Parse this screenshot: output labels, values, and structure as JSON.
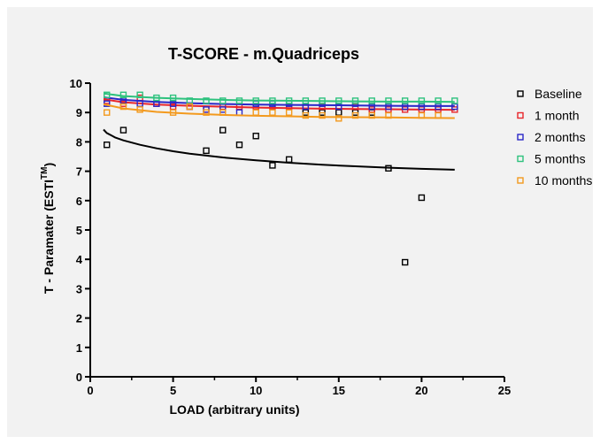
{
  "chart_data": {
    "type": "scatter",
    "title": "T-SCORE - m.Quadriceps",
    "xlabel": "LOAD (arbitrary units)",
    "ylabel_main": "T - Paramater (ESTI",
    "ylabel_sup": "TM",
    "ylabel_end": ")",
    "xlim": [
      0,
      25
    ],
    "ylim": [
      0,
      10
    ],
    "x_ticks": [
      0,
      5,
      10,
      15,
      20,
      25
    ],
    "y_ticks": [
      0,
      1,
      2,
      3,
      4,
      5,
      6,
      7,
      8,
      9,
      10
    ],
    "grid": false,
    "legend_position": "right",
    "marker": "open-square",
    "series": [
      {
        "name": "Baseline",
        "color": "#000000",
        "points": [
          [
            1,
            7.9
          ],
          [
            2,
            8.4
          ],
          [
            7,
            7.7
          ],
          [
            8,
            8.4
          ],
          [
            9,
            7.9
          ],
          [
            10,
            8.2
          ],
          [
            11,
            7.2
          ],
          [
            12,
            7.4
          ],
          [
            13,
            9.0
          ],
          [
            14,
            9.0
          ],
          [
            15,
            9.0
          ],
          [
            16,
            9.0
          ],
          [
            17,
            9.0
          ],
          [
            18,
            7.1
          ],
          [
            19,
            3.9
          ],
          [
            20,
            6.1
          ]
        ],
        "fit": [
          [
            0.8,
            8.42
          ],
          [
            1,
            8.3
          ],
          [
            1.5,
            8.15
          ],
          [
            2,
            8.05
          ],
          [
            3,
            7.9
          ],
          [
            4,
            7.78
          ],
          [
            5,
            7.68
          ],
          [
            6,
            7.6
          ],
          [
            8,
            7.47
          ],
          [
            10,
            7.37
          ],
          [
            12,
            7.29
          ],
          [
            14,
            7.22
          ],
          [
            16,
            7.17
          ],
          [
            18,
            7.12
          ],
          [
            20,
            7.08
          ],
          [
            22,
            7.05
          ]
        ]
      },
      {
        "name": "1 month",
        "color": "#e8262b",
        "points": [
          [
            1,
            9.4
          ],
          [
            2,
            9.3
          ],
          [
            3,
            9.5
          ],
          [
            4,
            9.3
          ],
          [
            5,
            9.2
          ],
          [
            6,
            9.2
          ],
          [
            7,
            9.1
          ],
          [
            8,
            9.2
          ],
          [
            9,
            9.2
          ],
          [
            10,
            9.2
          ],
          [
            11,
            9.2
          ],
          [
            12,
            9.2
          ],
          [
            13,
            9.2
          ],
          [
            14,
            9.2
          ],
          [
            15,
            9.2
          ],
          [
            16,
            9.2
          ],
          [
            17,
            9.1
          ],
          [
            18,
            9.1
          ],
          [
            19,
            9.1
          ],
          [
            20,
            9.1
          ],
          [
            21,
            9.1
          ],
          [
            22,
            9.1
          ]
        ],
        "fit": [
          [
            0.8,
            9.45
          ],
          [
            2,
            9.35
          ],
          [
            4,
            9.27
          ],
          [
            6,
            9.23
          ],
          [
            8,
            9.2
          ],
          [
            10,
            9.17
          ],
          [
            12,
            9.15
          ],
          [
            14,
            9.13
          ],
          [
            16,
            9.12
          ],
          [
            18,
            9.11
          ],
          [
            20,
            9.1
          ],
          [
            22,
            9.09
          ]
        ]
      },
      {
        "name": "2 months",
        "color": "#2a27c8",
        "points": [
          [
            1,
            9.3
          ],
          [
            2,
            9.4
          ],
          [
            3,
            9.3
          ],
          [
            4,
            9.3
          ],
          [
            5,
            9.3
          ],
          [
            6,
            9.2
          ],
          [
            7,
            9.1
          ],
          [
            8,
            9.1
          ],
          [
            9,
            9.0
          ],
          [
            10,
            9.3
          ],
          [
            11,
            9.3
          ],
          [
            12,
            9.3
          ],
          [
            13,
            9.2
          ],
          [
            14,
            9.3
          ],
          [
            15,
            9.2
          ],
          [
            16,
            9.3
          ],
          [
            17,
            9.2
          ],
          [
            18,
            9.2
          ],
          [
            19,
            9.2
          ],
          [
            20,
            9.2
          ],
          [
            21,
            9.2
          ],
          [
            22,
            9.2
          ]
        ],
        "fit": [
          [
            0.8,
            9.52
          ],
          [
            2,
            9.43
          ],
          [
            4,
            9.36
          ],
          [
            6,
            9.32
          ],
          [
            8,
            9.29
          ],
          [
            10,
            9.27
          ],
          [
            12,
            9.26
          ],
          [
            14,
            9.25
          ],
          [
            16,
            9.24
          ],
          [
            18,
            9.23
          ],
          [
            20,
            9.22
          ],
          [
            22,
            9.22
          ]
        ]
      },
      {
        "name": "5 months",
        "color": "#2ec27e",
        "points": [
          [
            1,
            9.6
          ],
          [
            2,
            9.6
          ],
          [
            3,
            9.6
          ],
          [
            4,
            9.5
          ],
          [
            5,
            9.5
          ],
          [
            6,
            9.4
          ],
          [
            7,
            9.4
          ],
          [
            8,
            9.4
          ],
          [
            9,
            9.4
          ],
          [
            10,
            9.4
          ],
          [
            11,
            9.4
          ],
          [
            12,
            9.4
          ],
          [
            13,
            9.4
          ],
          [
            14,
            9.4
          ],
          [
            15,
            9.4
          ],
          [
            16,
            9.4
          ],
          [
            17,
            9.4
          ],
          [
            18,
            9.4
          ],
          [
            19,
            9.4
          ],
          [
            20,
            9.4
          ],
          [
            21,
            9.4
          ],
          [
            22,
            9.4
          ]
        ],
        "fit": [
          [
            0.8,
            9.65
          ],
          [
            2,
            9.56
          ],
          [
            4,
            9.5
          ],
          [
            6,
            9.46
          ],
          [
            8,
            9.43
          ],
          [
            10,
            9.41
          ],
          [
            12,
            9.4
          ],
          [
            14,
            9.39
          ],
          [
            16,
            9.38
          ],
          [
            18,
            9.37
          ],
          [
            20,
            9.37
          ],
          [
            22,
            9.36
          ]
        ]
      },
      {
        "name": "10 months",
        "color": "#f39a1e",
        "points": [
          [
            1,
            9.0
          ],
          [
            2,
            9.2
          ],
          [
            3,
            9.1
          ],
          [
            5,
            9.0
          ],
          [
            6,
            9.2
          ],
          [
            7,
            9.0
          ],
          [
            8,
            9.0
          ],
          [
            10,
            9.0
          ],
          [
            11,
            9.0
          ],
          [
            12,
            9.0
          ],
          [
            13,
            8.9
          ],
          [
            14,
            8.9
          ],
          [
            15,
            8.8
          ],
          [
            16,
            8.9
          ],
          [
            17,
            8.9
          ],
          [
            18,
            8.9
          ],
          [
            20,
            8.9
          ],
          [
            21,
            8.9
          ]
        ],
        "fit": [
          [
            0.8,
            9.28
          ],
          [
            2,
            9.14
          ],
          [
            4,
            9.02
          ],
          [
            6,
            8.96
          ],
          [
            8,
            8.92
          ],
          [
            10,
            8.89
          ],
          [
            12,
            8.87
          ],
          [
            14,
            8.85
          ],
          [
            16,
            8.84
          ],
          [
            18,
            8.83
          ],
          [
            20,
            8.82
          ],
          [
            22,
            8.81
          ]
        ]
      }
    ]
  }
}
